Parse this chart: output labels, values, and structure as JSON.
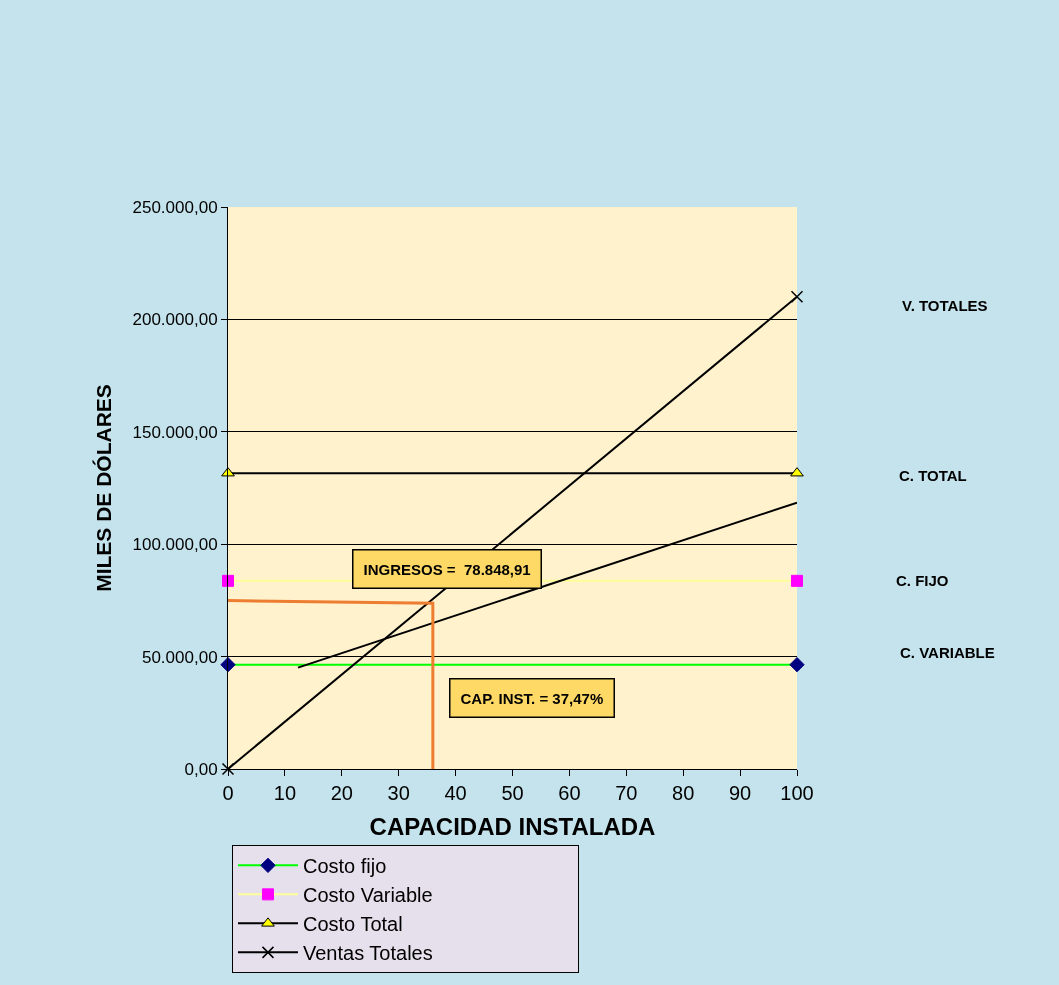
{
  "chart_data": {
    "type": "line",
    "xlabel": "CAPACIDAD INSTALADA",
    "ylabel": "MILES DE DÓLARES",
    "x": [
      0,
      100
    ],
    "series": [
      {
        "name": "Costo fijo",
        "color": "#00ff00",
        "colors": [
          "#000080",
          "#000080"
        ],
        "marker": "diamond",
        "values": [
          46400,
          46400
        ]
      },
      {
        "name": "Costo Variable",
        "color": "#ffff99",
        "colors": [
          "#ff00ff",
          "#ff00ff"
        ],
        "marker": "square",
        "values": [
          83700,
          83700
        ]
      },
      {
        "name": "Costo Total",
        "color": "#000000",
        "colors": [
          "#ffff00",
          "#ffff00"
        ],
        "marker": "triangle",
        "values": [
          131600,
          131600
        ]
      },
      {
        "name": "Ventas Totales",
        "color": "#000000",
        "colors": [
          "#000000",
          "#000000"
        ],
        "marker": "cross",
        "values": [
          0,
          210100
        ]
      },
      {
        "color": "#000000",
        "marker": "none",
        "x": [
          12.3,
          100
        ],
        "values": [
          45100,
          118500
        ]
      },
      {
        "color": "#ed7d31",
        "marker": "none",
        "x": [
          0,
          36,
          36
        ],
        "values": [
          74900,
          73700,
          0
        ]
      }
    ],
    "xlim": [
      0,
      100
    ],
    "xticks": [
      0,
      10,
      20,
      30,
      40,
      50,
      60,
      70,
      80,
      90,
      100
    ],
    "ylim": [
      0,
      250000
    ],
    "yticks": [
      {
        "value": 0,
        "label": "0,00"
      },
      {
        "value": 50000,
        "label": "50.000,00"
      },
      {
        "value": 100000,
        "label": "100.000,00"
      },
      {
        "value": 150000,
        "label": "150.000,00"
      },
      {
        "value": 200000,
        "label": "200.000,00"
      },
      {
        "value": 250000,
        "label": "250.000,00"
      }
    ],
    "grid": "y",
    "legend": "bottom",
    "line_style": "solid",
    "annotations": [
      "V. TOTALES",
      "C. TOTAL",
      "C. FIJO",
      "C. VARIABLE",
      "INGRESOS =  78.848,91",
      "CAP. INST. = 37,47%"
    ]
  }
}
